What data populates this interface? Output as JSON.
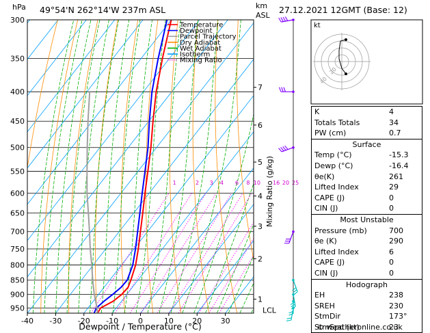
{
  "header": {
    "station": "49°54'N  262°14'W  237m  ASL",
    "datetime": "27.12.2021  12GMT  (Base: 12)",
    "hpa_label": "hPa",
    "km_label": "km",
    "asl_label": "ASL",
    "mixing_ratio_label": "Mixing Ratio (g/kg)",
    "xlabel": "Dewpoint / Temperature (°C)",
    "credit": "© weatheronline.co.uk"
  },
  "legend": [
    {
      "label": "Temperature",
      "color": "#ff0000",
      "style": "solid"
    },
    {
      "label": "Dewpoint",
      "color": "#0000ff",
      "style": "solid"
    },
    {
      "label": "Parcel Trajectory",
      "color": "#a0a0a0",
      "style": "solid"
    },
    {
      "label": "Dry Adiabat",
      "color": "#ff8c00",
      "style": "solid"
    },
    {
      "label": "Wet Adiabat",
      "color": "#00b000",
      "style": "solid"
    },
    {
      "label": "Isotherm",
      "color": "#00a0ff",
      "style": "solid"
    },
    {
      "label": "Mixing Ratio",
      "color": "#ff00ff",
      "style": "dotted"
    }
  ],
  "chart_data": {
    "type": "line",
    "title": "",
    "xlabel": "Dewpoint / Temperature (°C)",
    "ylabel": "hPa",
    "xlim": [
      -40,
      40
    ],
    "ylim": [
      970,
      300
    ],
    "x_ticks": [
      -40,
      -30,
      -20,
      -10,
      0,
      10,
      20,
      30
    ],
    "pressure_levels": [
      300,
      350,
      400,
      450,
      500,
      550,
      600,
      650,
      700,
      750,
      800,
      850,
      900,
      950
    ],
    "km_ticks": [
      {
        "km": "1",
        "p": 917
      },
      {
        "km": "2",
        "p": 780
      },
      {
        "km": "3",
        "p": 685
      },
      {
        "km": "4",
        "p": 607
      },
      {
        "km": "5",
        "p": 530
      },
      {
        "km": "6",
        "p": 457
      },
      {
        "km": "7",
        "p": 393
      }
    ],
    "lcl_label": "LCL",
    "lcl_pressure": 958,
    "mixing_ratio_labels": [
      "1",
      "2",
      "3",
      "4",
      "6",
      "8",
      "10",
      "16",
      "20",
      "25"
    ],
    "mixing_ratio_values": [
      1,
      2,
      3,
      4,
      6,
      8,
      10,
      16,
      20,
      25
    ],
    "series": [
      {
        "name": "Temperature",
        "color": "#ff0000",
        "points": [
          [
            970,
            -15.2
          ],
          [
            950,
            -15.5
          ],
          [
            925,
            -13.0
          ],
          [
            900,
            -11.8
          ],
          [
            875,
            -11.5
          ],
          [
            850,
            -12.5
          ],
          [
            800,
            -15.0
          ],
          [
            750,
            -18.5
          ],
          [
            700,
            -22.5
          ],
          [
            650,
            -26.8
          ],
          [
            600,
            -31.5
          ],
          [
            550,
            -36.5
          ],
          [
            500,
            -42.0
          ],
          [
            450,
            -48.5
          ],
          [
            400,
            -55.5
          ],
          [
            350,
            -62.5
          ],
          [
            300,
            -70.0
          ]
        ]
      },
      {
        "name": "Dewpoint",
        "color": "#0000ff",
        "points": [
          [
            970,
            -16.4
          ],
          [
            950,
            -17.0
          ],
          [
            925,
            -16.2
          ],
          [
            900,
            -15.0
          ],
          [
            875,
            -14.0
          ],
          [
            850,
            -13.8
          ],
          [
            800,
            -16.0
          ],
          [
            750,
            -19.5
          ],
          [
            700,
            -23.5
          ],
          [
            650,
            -27.8
          ],
          [
            600,
            -32.5
          ],
          [
            550,
            -37.5
          ],
          [
            500,
            -43.0
          ],
          [
            450,
            -49.8
          ],
          [
            400,
            -57.0
          ],
          [
            350,
            -64.0
          ],
          [
            300,
            -71.5
          ]
        ]
      },
      {
        "name": "Parcel Trajectory",
        "color": "#a0a0a0",
        "points": [
          [
            970,
            -15.2
          ],
          [
            950,
            -16.8
          ],
          [
            900,
            -21.5
          ],
          [
            850,
            -26.0
          ],
          [
            800,
            -30.5
          ],
          [
            750,
            -35.5
          ],
          [
            700,
            -40.5
          ],
          [
            650,
            -46.0
          ],
          [
            600,
            -52.0
          ],
          [
            550,
            -58.0
          ],
          [
            500,
            -64.5
          ],
          [
            450,
            -71.5
          ],
          [
            400,
            -79.0
          ]
        ]
      }
    ]
  },
  "wind_barbs": [
    {
      "p": 300,
      "dir": 260,
      "speed_kt": 40
    },
    {
      "p": 400,
      "dir": 270,
      "speed_kt": 30
    },
    {
      "p": 500,
      "dir": 250,
      "speed_kt": 35
    },
    {
      "p": 700,
      "dir": 200,
      "speed_kt": 30
    },
    {
      "p": 850,
      "dir": 160,
      "speed_kt": 25
    },
    {
      "p": 900,
      "dir": 170,
      "speed_kt": 25
    },
    {
      "p": 925,
      "dir": 180,
      "speed_kt": 20
    },
    {
      "p": 950,
      "dir": 190,
      "speed_kt": 15
    }
  ],
  "hodograph": {
    "label": "kt",
    "ring_labels": [
      "20",
      "40"
    ],
    "points": [
      [
        6,
        -18
      ],
      [
        0,
        -10
      ],
      [
        -4,
        4
      ],
      [
        -4,
        16
      ],
      [
        -2,
        30
      ],
      [
        6,
        32
      ]
    ]
  },
  "indices": {
    "top": [
      {
        "label": "K",
        "value": "4"
      },
      {
        "label": "Totals Totals",
        "value": "34"
      },
      {
        "label": "PW (cm)",
        "value": "0.7"
      }
    ],
    "surface": {
      "title": "Surface",
      "rows": [
        {
          "label": "Temp (°C)",
          "value": "-15.3"
        },
        {
          "label": "Dewp (°C)",
          "value": "-16.4"
        },
        {
          "label": "θe(K)",
          "value": "261"
        },
        {
          "label": "Lifted Index",
          "value": "29"
        },
        {
          "label": "CAPE (J)",
          "value": "0"
        },
        {
          "label": "CIN (J)",
          "value": "0"
        }
      ]
    },
    "most_unstable": {
      "title": "Most Unstable",
      "rows": [
        {
          "label": "Pressure (mb)",
          "value": "700"
        },
        {
          "label": "θe (K)",
          "value": "290"
        },
        {
          "label": "Lifted Index",
          "value": "6"
        },
        {
          "label": "CAPE (J)",
          "value": "0"
        },
        {
          "label": "CIN (J)",
          "value": "0"
        }
      ]
    },
    "hodograph": {
      "title": "Hodograph",
      "rows": [
        {
          "label": "EH",
          "value": "238"
        },
        {
          "label": "SREH",
          "value": "230"
        },
        {
          "label": "StmDir",
          "value": "173°"
        },
        {
          "label": "StmSpd (kt)",
          "value": "23"
        }
      ]
    }
  }
}
